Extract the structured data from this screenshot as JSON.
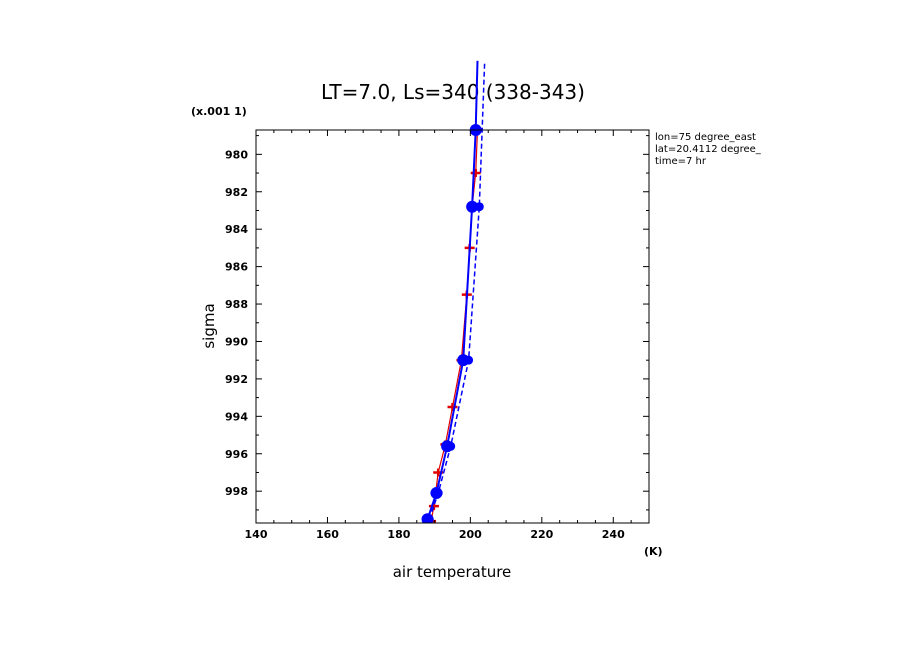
{
  "chart_data": {
    "type": "line",
    "title": "LT=7.0, Ls=340 (338-343)",
    "xlabel": "air temperature",
    "xunit": "(K)",
    "ylabel": "sigma",
    "yunit": "(x.001 1)",
    "xlim": [
      140,
      250
    ],
    "ylim": [
      978.7,
      999.7
    ],
    "y_reversed": true,
    "grid": false,
    "legend": "none",
    "x_ticks": [
      140,
      160,
      180,
      200,
      220,
      240
    ],
    "y_ticks": [
      980,
      982,
      984,
      986,
      988,
      990,
      992,
      994,
      996,
      998
    ],
    "annotations": [
      "lon=75 degree_east",
      "lat=20.4112 degree_",
      "time=7 hr"
    ],
    "series": [
      {
        "style": "red-cross",
        "color": "#e00000",
        "x": [
          189.0,
          189.8,
          191.0,
          193.0,
          195.0,
          197.5,
          199.0,
          199.8,
          200.5,
          201.5,
          202.0
        ],
        "y": [
          999.6,
          998.8,
          997.0,
          995.5,
          993.5,
          991.0,
          987.5,
          985.0,
          982.8,
          981.0,
          978.7
        ]
      },
      {
        "style": "blue-solid-circles",
        "color": "#0000ff",
        "x": [
          188.0,
          190.5,
          193.5,
          198.0,
          200.5,
          201.5,
          202.0
        ],
        "y": [
          999.5,
          998.1,
          995.6,
          991.0,
          982.8,
          978.7,
          975.0
        ]
      },
      {
        "style": "blue-dashed",
        "color": "#0000ff",
        "x": [
          188.5,
          191.0,
          194.5,
          199.5,
          202.5,
          204.0
        ],
        "y": [
          999.5,
          998.1,
          995.6,
          991.0,
          982.8,
          975.0
        ]
      }
    ]
  }
}
